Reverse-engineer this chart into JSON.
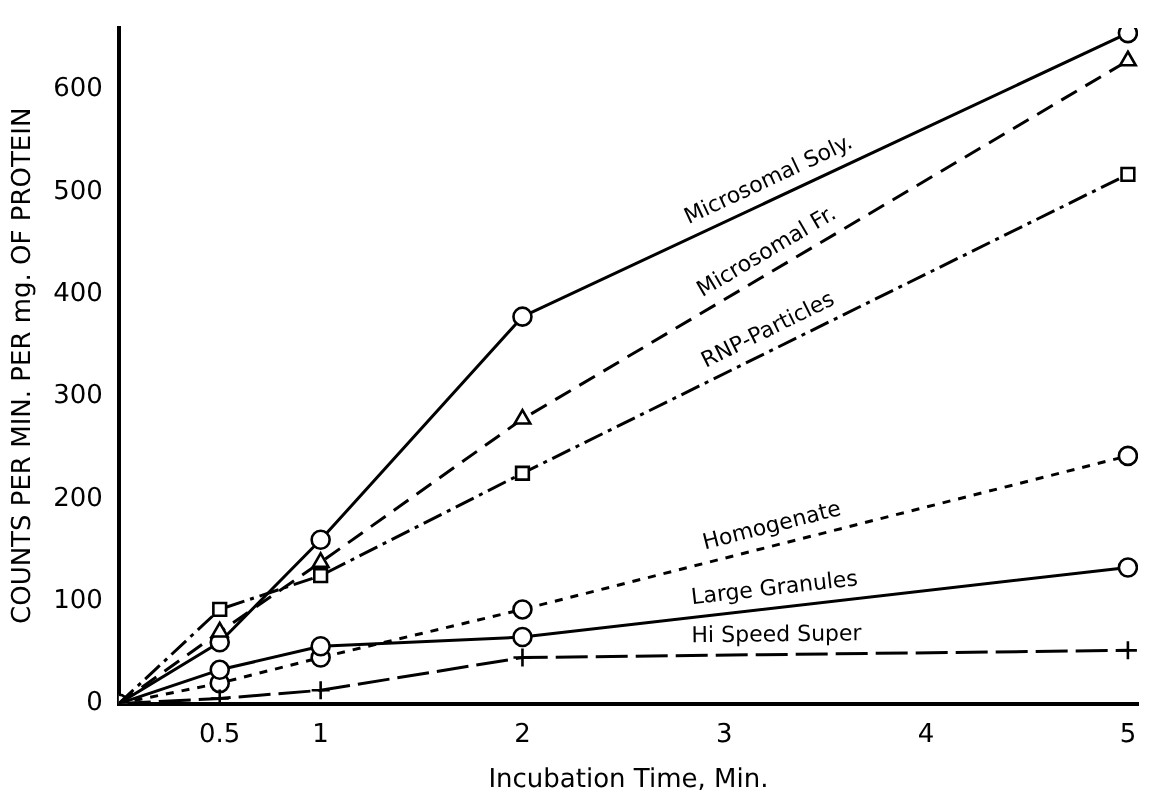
{
  "chart_data": {
    "type": "line",
    "xlabel": "Incubation Time, Min.",
    "ylabel": "COUNTS PER MIN. PER mg. OF PROTEIN",
    "x": [
      0,
      0.5,
      1,
      2,
      5
    ],
    "xlim": [
      0,
      5.05
    ],
    "xticks": [
      0.5,
      1,
      2,
      3,
      4,
      5
    ],
    "ylim": [
      0,
      660
    ],
    "yticks": [
      0,
      100,
      200,
      300,
      400,
      500,
      600
    ],
    "grid": false,
    "legend": false,
    "series": [
      {
        "name": "Microsomal Soly.",
        "color": "#000000",
        "values": [
          0,
          60,
          160,
          378,
          655
        ],
        "marker": "circle",
        "line_style": "solid"
      },
      {
        "name": "Microsomal Fr.",
        "color": "#000000",
        "values": [
          0,
          70,
          138,
          278,
          628
        ],
        "marker": "triangle",
        "line_style": "dashed"
      },
      {
        "name": "RNP-Particles",
        "color": "#000000",
        "values": [
          0,
          92,
          125,
          225,
          517
        ],
        "marker": "square",
        "line_style": "dashdot"
      },
      {
        "name": "Homogenate",
        "color": "#000000",
        "values": [
          0,
          20,
          45,
          92,
          242
        ],
        "marker": "circle",
        "line_style": "dotted"
      },
      {
        "name": "Large Granules",
        "color": "#000000",
        "values": [
          0,
          33,
          56,
          65,
          133
        ],
        "marker": "circle",
        "line_style": "solid"
      },
      {
        "name": "Hi Speed Super",
        "color": "#000000",
        "values": [
          0,
          5,
          13,
          45,
          52
        ],
        "marker": "cross",
        "line_style": "longdash"
      }
    ]
  }
}
